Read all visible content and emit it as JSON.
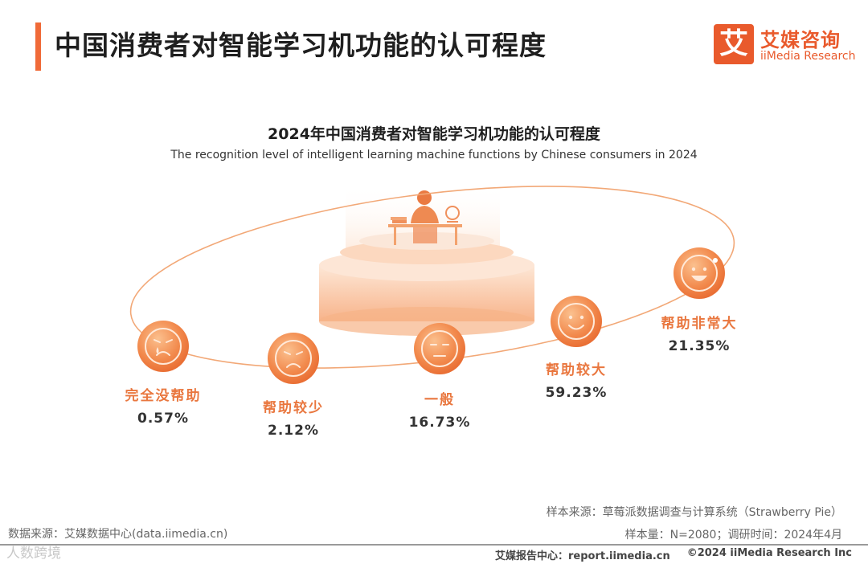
{
  "header": {
    "title": "中国消费者对智能学习机功能的认可程度",
    "logo_cn": "艾媒咨询",
    "logo_en": "iiMedia Research",
    "logo_mark": "艾"
  },
  "colors": {
    "accent": "#f06a38",
    "label": "#e9773f",
    "ellipse": "#f0a070"
  },
  "chart_data": {
    "type": "table",
    "title": "2024年中国消费者对智能学习机功能的认可程度",
    "subtitle": "The recognition level of intelligent learning machine functions by Chinese consumers in 2024",
    "unit": "%",
    "categories": [
      "完全没帮助",
      "帮助较少",
      "一般",
      "帮助较大",
      "帮助非常大"
    ],
    "values": [
      0.57,
      2.12,
      16.73,
      59.23,
      21.35
    ],
    "value_labels": [
      "0.57%",
      "2.12%",
      "16.73%",
      "59.23%",
      "21.35%"
    ],
    "faces": [
      "crying",
      "sad",
      "neutral",
      "smile",
      "laugh"
    ]
  },
  "footer": {
    "source_left": "数据来源：艾媒数据中心(data.iimedia.cn)",
    "sample_source": "样本来源：草莓派数据调查与计算系统（Strawberry Pie）",
    "sample_info": "样本量：N=2080；调研时间：2024年4月",
    "report_center": "艾媒报告中心：report.iimedia.cn",
    "copyright": "©2024  iiMedia Research  Inc",
    "watermark": "人数跨境"
  }
}
